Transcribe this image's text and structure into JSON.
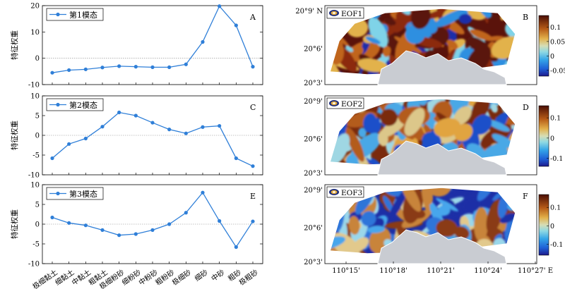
{
  "chart_data": [
    {
      "type": "line",
      "panel_letter": "A",
      "ylabel": "特征权重",
      "legend": "第1模态",
      "ylim": [
        -10,
        20
      ],
      "yticks": [
        -10,
        0,
        10,
        20
      ],
      "categories": [
        "极细黏土",
        "细黏土",
        "中黏土",
        "粗黏土",
        "极细粉砂",
        "细粉砂",
        "中粉砂",
        "粗粉砂",
        "极细砂",
        "细砂",
        "中砂",
        "粗砂",
        "极粗砂"
      ],
      "series": [
        {
          "name": "第1模态",
          "values": [
            -5.5,
            -4.5,
            -4.2,
            -3.5,
            -3.0,
            -3.2,
            -3.4,
            -3.4,
            -2.3,
            6.2,
            19.8,
            12.5,
            -3.2
          ]
        }
      ],
      "color": "#2f7fd8"
    },
    {
      "type": "line",
      "panel_letter": "C",
      "ylabel": "特征权重",
      "legend": "第2模态",
      "ylim": [
        -10,
        10
      ],
      "yticks": [
        -10,
        -5,
        0,
        5,
        10
      ],
      "categories": [
        "极细黏土",
        "细黏土",
        "中黏土",
        "粗黏土",
        "极细粉砂",
        "细粉砂",
        "中粉砂",
        "粗粉砂",
        "极细砂",
        "细砂",
        "中砂",
        "粗砂",
        "极粗砂"
      ],
      "series": [
        {
          "name": "第2模态",
          "values": [
            -5.8,
            -2.2,
            -0.8,
            2.2,
            5.8,
            5.0,
            3.2,
            1.5,
            0.5,
            2.1,
            2.4,
            -5.8,
            -7.8
          ]
        }
      ],
      "color": "#2f7fd8"
    },
    {
      "type": "line",
      "panel_letter": "E",
      "ylabel": "特征权重",
      "legend": "第3模态",
      "ylim": [
        -10,
        10
      ],
      "yticks": [
        -10,
        -5,
        0,
        5,
        10
      ],
      "categories": [
        "极细黏土",
        "细黏土",
        "中黏土",
        "粗黏土",
        "极细粉砂",
        "细粉砂",
        "中粉砂",
        "粗粉砂",
        "极细砂",
        "细砂",
        "中砂",
        "粗砂",
        "极粗砂"
      ],
      "series": [
        {
          "name": "第3模态",
          "values": [
            1.7,
            0.3,
            -0.3,
            -1.5,
            -2.8,
            -2.5,
            -1.5,
            0.0,
            2.9,
            8.0,
            0.8,
            -5.8,
            0.7
          ]
        }
      ],
      "color": "#2f7fd8"
    },
    {
      "type": "heatmap",
      "panel_letter": "B",
      "legend": "EOF1",
      "yticks": [
        "20°9' N",
        "20°6'",
        "20°3'"
      ],
      "colorbar_ticks": [
        "0.1",
        "0.05",
        "0",
        "-0.05"
      ],
      "colorbar_range": [
        -0.07,
        0.14
      ]
    },
    {
      "type": "heatmap",
      "panel_letter": "D",
      "legend": "EOF2",
      "yticks": [
        "20°9'",
        "20°6'",
        "20°3'"
      ],
      "colorbar_ticks": [
        "0.1",
        "0",
        "-0.1"
      ],
      "colorbar_range": [
        -0.14,
        0.16
      ]
    },
    {
      "type": "heatmap",
      "panel_letter": "F",
      "legend": "EOF3",
      "yticks": [
        "20°9'",
        "20°6'",
        "20°3'"
      ],
      "xticks": [
        "110°15'",
        "110°18'",
        "110°21'",
        "110°24'",
        "110°27' E"
      ],
      "colorbar_ticks": [
        "0.1",
        "0",
        "-0.1"
      ],
      "colorbar_range": [
        -0.16,
        0.17
      ]
    }
  ]
}
